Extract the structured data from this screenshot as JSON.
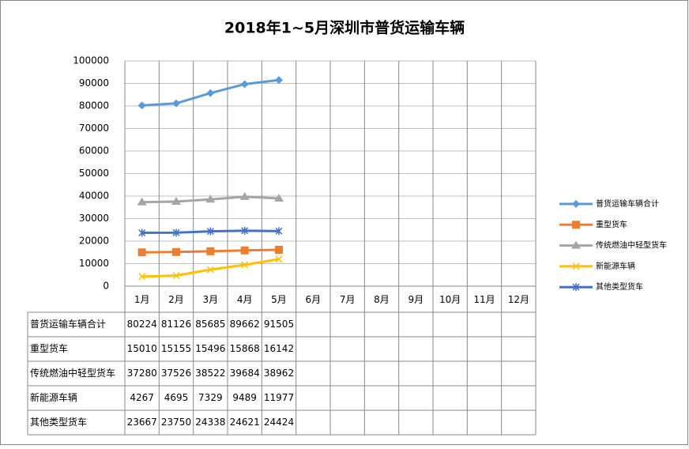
{
  "chart_data": {
    "type": "line",
    "title": "2018年1~5月深圳市普货运输车辆",
    "categories": [
      "1月",
      "2月",
      "3月",
      "4月",
      "5月",
      "6月",
      "7月",
      "8月",
      "9月",
      "10月",
      "11月",
      "12月"
    ],
    "series": [
      {
        "name": "普货运输车辆合计",
        "color": "#5b9bd5",
        "marker": "diamond",
        "values": [
          80224,
          81126,
          85685,
          89662,
          91505,
          null,
          null,
          null,
          null,
          null,
          null,
          null
        ]
      },
      {
        "name": "重型货车",
        "color": "#ed7d31",
        "marker": "square",
        "values": [
          15010,
          15155,
          15496,
          15868,
          16142,
          null,
          null,
          null,
          null,
          null,
          null,
          null
        ]
      },
      {
        "name": "传统燃油中轻型货车",
        "color": "#a5a5a5",
        "marker": "triangle",
        "values": [
          37280,
          37526,
          38522,
          39684,
          38962,
          null,
          null,
          null,
          null,
          null,
          null,
          null
        ]
      },
      {
        "name": "新能源车辆",
        "color": "#ffc000",
        "marker": "x",
        "values": [
          4267,
          4695,
          7329,
          9489,
          11977,
          null,
          null,
          null,
          null,
          null,
          null,
          null
        ]
      },
      {
        "name": "其他类型货车",
        "color": "#4472c4",
        "marker": "star",
        "values": [
          23667,
          23750,
          24338,
          24621,
          24424,
          null,
          null,
          null,
          null,
          null,
          null,
          null
        ]
      }
    ],
    "ylim": [
      0,
      100000
    ],
    "yticks": [
      0,
      10000,
      20000,
      30000,
      40000,
      50000,
      60000,
      70000,
      80000,
      90000,
      100000
    ],
    "grid": true,
    "legend": "right",
    "data_table": true
  }
}
